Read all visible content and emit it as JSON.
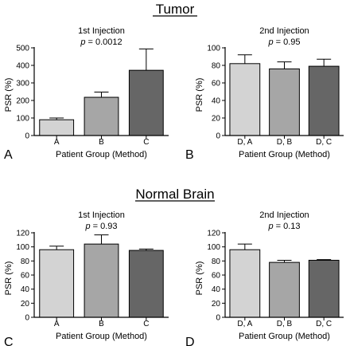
{
  "sections": {
    "top": "Tumor",
    "bottom": "Normal Brain"
  },
  "chart_data": [
    {
      "panel_letter": "A",
      "type": "bar",
      "title": "1st Injection",
      "p_prefix": "p",
      "p_value": "= 0.0012",
      "xlabel": "Patient Group (Method)",
      "ylabel": "PSR (%)",
      "ylim": [
        0,
        500
      ],
      "yticks": [
        0,
        100,
        200,
        300,
        400,
        500
      ],
      "categories": [
        "A",
        "B",
        "C"
      ],
      "values": [
        90,
        218,
        372
      ],
      "errors": [
        10,
        30,
        122
      ],
      "bar_colors": [
        "#d3d3d3",
        "#a6a6a6",
        "#666666"
      ]
    },
    {
      "panel_letter": "B",
      "type": "bar",
      "title": "2nd Injection",
      "p_prefix": "p",
      "p_value": "= 0.95",
      "xlabel": "Patient Group (Method)",
      "ylabel": "PSR (%)",
      "ylim": [
        0,
        100
      ],
      "yticks": [
        0,
        20,
        40,
        60,
        80,
        100
      ],
      "categories": [
        "D, A",
        "D, B",
        "D, C"
      ],
      "values": [
        82,
        76,
        79
      ],
      "errors": [
        10,
        8,
        8
      ],
      "bar_colors": [
        "#d3d3d3",
        "#a6a6a6",
        "#666666"
      ]
    },
    {
      "panel_letter": "C",
      "type": "bar",
      "title": "1st Injection",
      "p_prefix": "p",
      "p_value": "= 0.93",
      "xlabel": "Patient Group (Method)",
      "ylabel": "PSR (%)",
      "ylim": [
        0,
        120
      ],
      "yticks": [
        0,
        20,
        40,
        60,
        80,
        100,
        120
      ],
      "categories": [
        "A",
        "B",
        "C"
      ],
      "values": [
        96,
        104,
        95
      ],
      "errors": [
        5,
        13,
        2
      ],
      "bar_colors": [
        "#d3d3d3",
        "#a6a6a6",
        "#666666"
      ]
    },
    {
      "panel_letter": "D",
      "type": "bar",
      "title": "2nd Injection",
      "p_prefix": "p",
      "p_value": "= 0.13",
      "xlabel": "Patient Group (Method)",
      "ylabel": "PSR (%)",
      "ylim": [
        0,
        120
      ],
      "yticks": [
        0,
        20,
        40,
        60,
        80,
        100,
        120
      ],
      "categories": [
        "D, A",
        "D, B",
        "D, C"
      ],
      "values": [
        96,
        78,
        81
      ],
      "errors": [
        8,
        3,
        1
      ],
      "bar_colors": [
        "#d3d3d3",
        "#a6a6a6",
        "#666666"
      ]
    }
  ]
}
